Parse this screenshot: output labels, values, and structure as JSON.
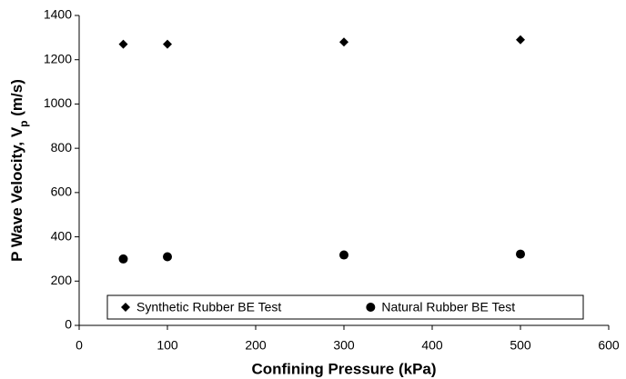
{
  "chart_data": {
    "type": "scatter",
    "x_label": "Confining Pressure (kPa)",
    "y_label": [
      "P Wave Velocity, V",
      "p",
      " (m/s)"
    ],
    "xlim": [
      0,
      600
    ],
    "xticks": [
      0,
      100,
      200,
      300,
      400,
      500,
      600
    ],
    "ylim": [
      0,
      1400
    ],
    "yticks": [
      0,
      200,
      400,
      600,
      800,
      1000,
      1200,
      1400
    ],
    "grid": false,
    "legend": "bottom",
    "series": [
      {
        "name": "Synthetic Rubber BE Test",
        "color": "#000000",
        "marker": "diamond",
        "x": [
          50,
          100,
          300,
          500
        ],
        "values": [
          1270,
          1270,
          1280,
          1290
        ]
      },
      {
        "name": "Natural Rubber BE Test",
        "color": "#000000",
        "marker": "circle",
        "x": [
          50,
          100,
          300,
          500
        ],
        "values": [
          300,
          310,
          318,
          322
        ]
      }
    ]
  }
}
